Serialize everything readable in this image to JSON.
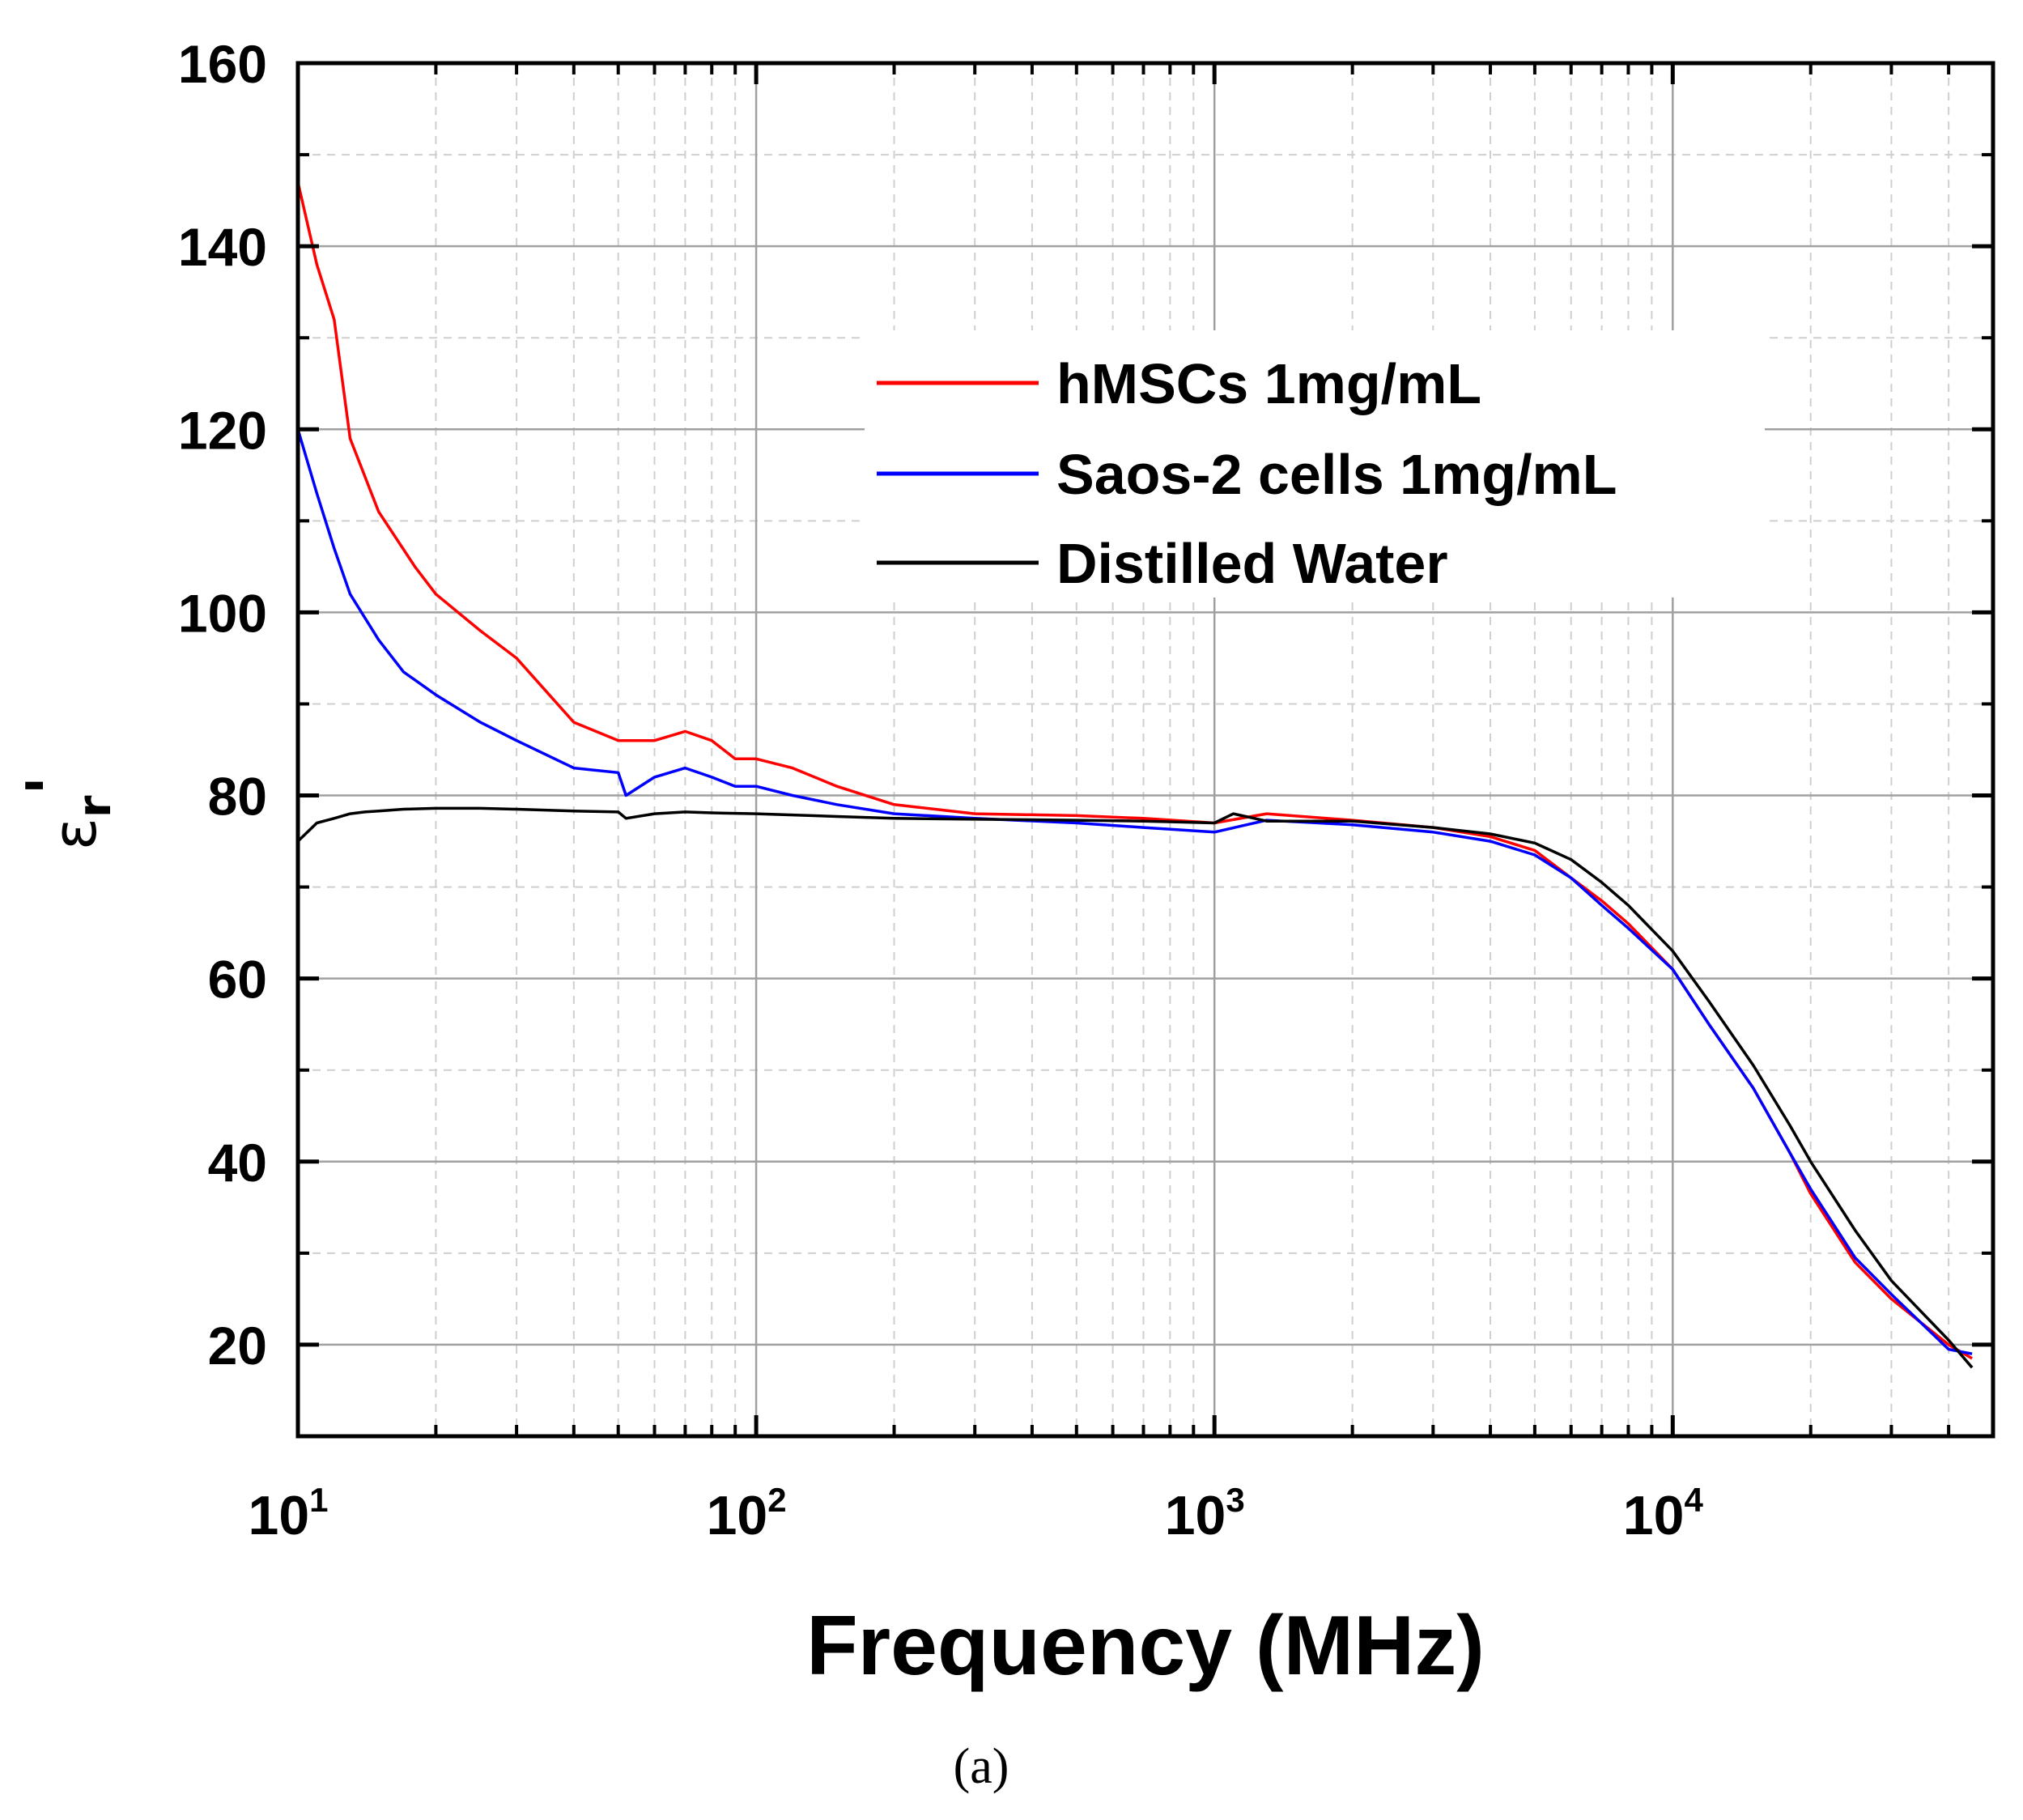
{
  "chart_data": {
    "type": "line",
    "title": "",
    "xlabel": "Frequency (MHz)",
    "ylabel": {
      "base": "ε",
      "subscript": "r",
      "prime": "'"
    },
    "xscale": "log",
    "xlim": [
      10,
      50000
    ],
    "ylim": [
      10,
      160
    ],
    "grid": true,
    "yticks": [
      {
        "value": 20,
        "label": "20"
      },
      {
        "value": 40,
        "label": "40"
      },
      {
        "value": 60,
        "label": "60"
      },
      {
        "value": 80,
        "label": "80"
      },
      {
        "value": 100,
        "label": "100"
      },
      {
        "value": 120,
        "label": "120"
      },
      {
        "value": 140,
        "label": "140"
      },
      {
        "value": 160,
        "label": "160"
      }
    ],
    "xticks": [
      {
        "value": 10,
        "base": "10",
        "exp": "1"
      },
      {
        "value": 100,
        "base": "10",
        "exp": "2"
      },
      {
        "value": 1000,
        "base": "10",
        "exp": "3"
      },
      {
        "value": 10000,
        "base": "10",
        "exp": "4"
      }
    ],
    "legend_position": "top-right",
    "series": [
      {
        "name": "hMSCs 1mg/mL",
        "color": "#ff0000",
        "x": [
          10,
          11,
          12,
          13,
          15,
          18,
          20,
          25,
          30,
          40,
          50,
          52,
          60,
          70,
          80,
          90,
          100,
          120,
          150,
          200,
          300,
          500,
          700,
          1000,
          1300,
          2000,
          3000,
          4000,
          5000,
          6000,
          7000,
          8000,
          10000,
          12000,
          15000,
          18000,
          20000,
          25000,
          30000,
          40000,
          45000
        ],
        "y": [
          147,
          138,
          132,
          119,
          111,
          105,
          102,
          98,
          95,
          88,
          86,
          86,
          86,
          87,
          86,
          84,
          84,
          83,
          81,
          79,
          78,
          77.8,
          77.5,
          77,
          78,
          77.3,
          76.5,
          75.5,
          74,
          71,
          68.5,
          66,
          61,
          55,
          48,
          41,
          36.5,
          29,
          25,
          20,
          18.5
        ]
      },
      {
        "name": "Saos-2 cells 1mg/mL",
        "color": "#0000ff",
        "x": [
          10,
          11,
          12,
          13,
          15,
          17,
          20,
          25,
          30,
          40,
          50,
          52,
          60,
          70,
          80,
          90,
          100,
          120,
          150,
          200,
          300,
          500,
          700,
          1000,
          1300,
          2000,
          3000,
          4000,
          5000,
          6000,
          7000,
          8000,
          10000,
          12000,
          15000,
          18000,
          20000,
          25000,
          30000,
          40000,
          45000
        ],
        "y": [
          120,
          113,
          107,
          102,
          97,
          93.5,
          91,
          88,
          86,
          83,
          82.5,
          80,
          82,
          83,
          82,
          81,
          81,
          80,
          79,
          78,
          77.5,
          77,
          76.5,
          76,
          77.3,
          76.8,
          76,
          75,
          73.5,
          71,
          68,
          65.5,
          61,
          55,
          48,
          41,
          37,
          29.5,
          25.5,
          19.5,
          19
        ]
      },
      {
        "name": "Distilled Water",
        "color": "#000000",
        "x": [
          10,
          11,
          12,
          13,
          14,
          15,
          17,
          20,
          25,
          30,
          40,
          50,
          52,
          60,
          70,
          80,
          100,
          150,
          200,
          300,
          500,
          700,
          1000,
          1100,
          1300,
          2000,
          3000,
          4000,
          5000,
          6000,
          7000,
          8000,
          10000,
          12000,
          15000,
          18000,
          20000,
          25000,
          30000,
          40000,
          45000
        ],
        "y": [
          75,
          77,
          77.5,
          78,
          78.2,
          78.3,
          78.5,
          78.6,
          78.6,
          78.5,
          78.3,
          78.2,
          77.5,
          78,
          78.2,
          78.1,
          78,
          77.7,
          77.5,
          77.4,
          77.3,
          77.2,
          77,
          78,
          77.2,
          77.2,
          76.5,
          75.8,
          74.8,
          73,
          70.5,
          68,
          63,
          57.5,
          50.5,
          44,
          40,
          32.5,
          27,
          20.5,
          17.5
        ]
      }
    ]
  },
  "caption": "(a)"
}
